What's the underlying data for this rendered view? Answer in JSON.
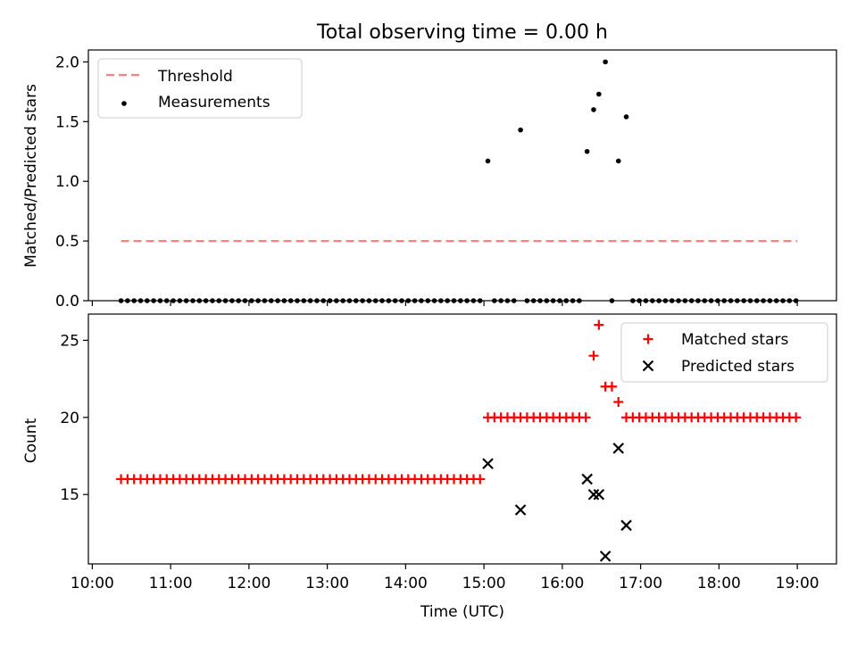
{
  "chart_data": [
    {
      "type": "scatter",
      "title": "Total observing time = 0.00 h",
      "xlabel": "",
      "ylabel": "Matched/Predicted stars",
      "xlim_hours": [
        9.95,
        19.5
      ],
      "ylim": [
        0,
        2.1
      ],
      "yticks": [
        0.0,
        0.5,
        1.0,
        1.5,
        2.0
      ],
      "ytick_labels": [
        "0.0",
        "0.5",
        "1.0",
        "1.5",
        "2.0"
      ],
      "legend_position": "upper-left",
      "legend": [
        "Threshold",
        "Measurements"
      ],
      "threshold": {
        "name": "Threshold",
        "value": 0.5,
        "x_start": "10:22",
        "x_end": "19:00",
        "color": "#ff7f7f",
        "style": "dashed"
      },
      "series": [
        {
          "name": "Measurements",
          "color": "#000000",
          "marker": "dot",
          "points": [
            [
              "15:03",
              1.17
            ],
            [
              "15:28",
              1.43
            ],
            [
              "16:19",
              1.25
            ],
            [
              "16:24",
              1.6
            ],
            [
              "16:28",
              1.73
            ],
            [
              "16:33",
              2.0
            ],
            [
              "16:43",
              1.17
            ],
            [
              "16:49",
              1.54
            ]
          ],
          "zero_runs": [
            {
              "start": "10:22",
              "end": "15:00",
              "step_minutes": 5
            },
            {
              "start": "15:08",
              "end": "15:23",
              "step_minutes": 5
            },
            {
              "start": "15:33",
              "end": "16:13",
              "step_minutes": 5
            },
            {
              "start": "16:38",
              "end": "16:38",
              "step_minutes": 5
            },
            {
              "start": "16:54",
              "end": "19:02",
              "step_minutes": 5
            }
          ]
        }
      ]
    },
    {
      "type": "scatter",
      "title": "",
      "xlabel": "Time (UTC)",
      "ylabel": "Count",
      "xlim_hours": [
        9.95,
        19.5
      ],
      "ylim": [
        10.5,
        26.7
      ],
      "yticks": [
        15,
        20,
        25
      ],
      "ytick_labels": [
        "15",
        "20",
        "25"
      ],
      "xticks": [
        "10:00",
        "11:00",
        "12:00",
        "13:00",
        "14:00",
        "15:00",
        "16:00",
        "17:00",
        "18:00",
        "19:00"
      ],
      "legend_position": "upper-right",
      "legend": [
        "Matched stars",
        "Predicted stars"
      ],
      "series": [
        {
          "name": "Matched stars",
          "color": "#ff0000",
          "marker": "plus",
          "runs": [
            {
              "start": "10:22",
              "end": "15:00",
              "step_minutes": 5,
              "value": 16
            },
            {
              "start": "15:03",
              "end": "16:19",
              "step_minutes": 5,
              "value": 20
            },
            {
              "start": "16:49",
              "end": "19:02",
              "step_minutes": 5,
              "value": 20
            }
          ],
          "points": [
            [
              "16:24",
              24
            ],
            [
              "16:28",
              26
            ],
            [
              "16:33",
              22
            ],
            [
              "16:38",
              22
            ],
            [
              "16:43",
              21
            ]
          ]
        },
        {
          "name": "Predicted stars",
          "color": "#000000",
          "marker": "x",
          "points": [
            [
              "15:03",
              17
            ],
            [
              "15:28",
              14
            ],
            [
              "16:19",
              16
            ],
            [
              "16:24",
              15
            ],
            [
              "16:28",
              15
            ],
            [
              "16:33",
              11
            ],
            [
              "16:43",
              18
            ],
            [
              "16:49",
              13
            ]
          ]
        }
      ]
    }
  ]
}
